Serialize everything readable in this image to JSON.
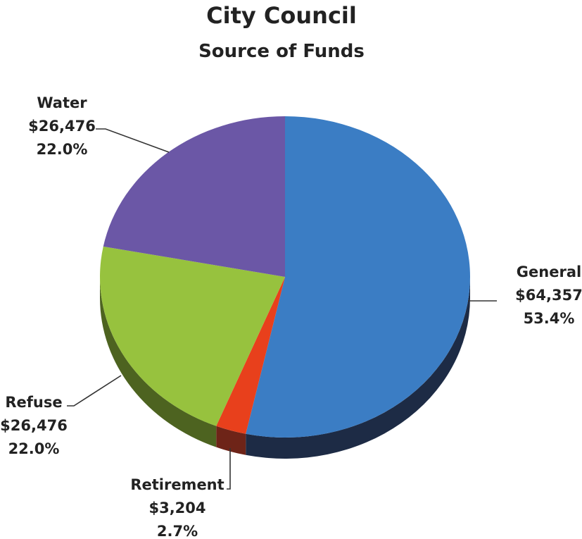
{
  "chart_data": {
    "type": "pie",
    "title": "City Council",
    "subtitle": "Source of Funds",
    "three_d": true,
    "slices": [
      {
        "name": "General",
        "value": 64357,
        "value_label": "$64,357",
        "percent_label": "53.4%",
        "color": "#3b7dc4",
        "side_color": "#1d2b45"
      },
      {
        "name": "Retirement",
        "value": 3204,
        "value_label": "$3,204",
        "percent_label": "2.7%",
        "color": "#e8401c",
        "side_color": "#6e2418"
      },
      {
        "name": "Refuse",
        "value": 26476,
        "value_label": "$26,476",
        "percent_label": "22.0%",
        "color": "#97c23e",
        "side_color": "#4d6320"
      },
      {
        "name": "Water",
        "value": 26476,
        "value_label": "$26,476",
        "percent_label": "22.0%",
        "color": "#6b57a6",
        "side_color": "#3a2f5c"
      }
    ]
  }
}
